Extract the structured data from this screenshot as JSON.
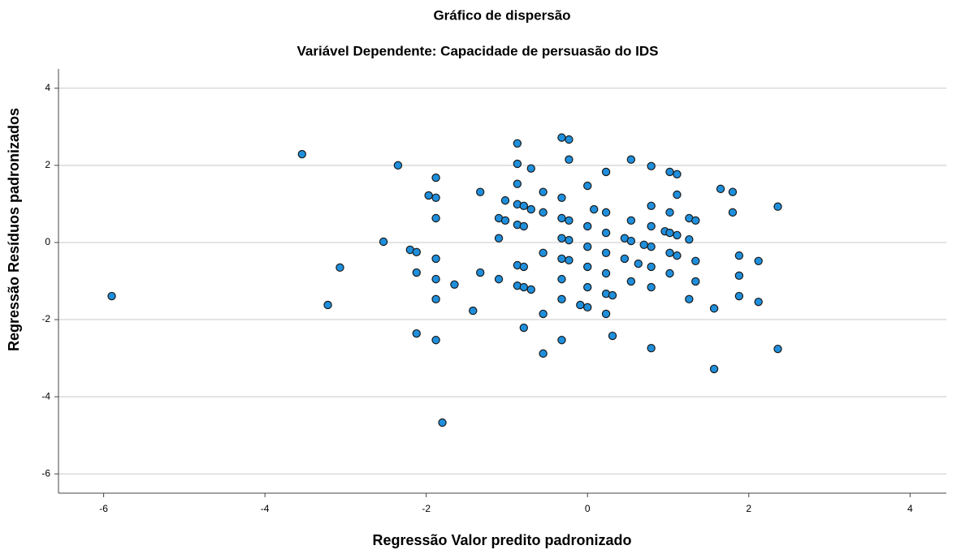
{
  "chart_data": {
    "type": "scatter",
    "title": "Gráfico de dispersão",
    "subtitle": "Variável Dependente: Capacidade de persuasão do IDS",
    "x_label": "Regressão Valor predito padronizado",
    "y_label": "Regressão Resíduos padronizados",
    "color": "#1f8fdc",
    "grid": true,
    "xlim": [
      -6.56,
      4.45
    ],
    "ylim": [
      -6.5,
      4.5
    ],
    "xticks": [
      -6,
      -4,
      -2,
      0,
      2,
      4
    ],
    "yticks": [
      -6,
      -4,
      -2,
      0,
      2,
      4
    ],
    "series": [
      {
        "x": [
          -5.9,
          -3.54,
          -3.07,
          -3.22,
          -2.35,
          -2.53,
          -2.2,
          -2.12,
          -2.12,
          -2.12,
          -1.97,
          -1.88,
          -1.88,
          -1.88,
          -1.88,
          -1.88,
          -1.88,
          -1.88,
          -1.8,
          -1.65,
          -1.42,
          -1.33,
          -1.33,
          -1.1,
          -1.1,
          -1.1,
          -1.02,
          -1.02,
          -0.87,
          -0.87,
          -0.87,
          -0.87,
          -0.87,
          -0.87,
          -0.87,
          -0.79,
          -0.79,
          -0.79,
          -0.79,
          -0.79,
          -0.7,
          -0.7,
          -0.7,
          -0.55,
          -0.55,
          -0.55,
          -0.55,
          -0.55,
          -0.32,
          -0.32,
          -0.32,
          -0.32,
          -0.32,
          -0.32,
          -0.32,
          -0.32,
          -0.23,
          -0.23,
          -0.23,
          -0.23,
          -0.23,
          -0.09,
          0,
          0,
          0,
          0,
          0,
          0,
          0.08,
          0.23,
          0.23,
          0.23,
          0.23,
          0.23,
          0.23,
          0.23,
          0.31,
          0.31,
          0.46,
          0.46,
          0.54,
          0.54,
          0.54,
          0.54,
          0.63,
          0.7,
          0.79,
          0.79,
          0.79,
          0.79,
          0.79,
          0.79,
          0.79,
          0.96,
          1.02,
          1.02,
          1.02,
          1.02,
          1.02,
          1.11,
          1.11,
          1.11,
          1.11,
          1.26,
          1.26,
          1.26,
          1.34,
          1.34,
          1.34,
          1.57,
          1.57,
          1.65,
          1.8,
          1.8,
          1.88,
          1.88,
          1.88,
          2.12,
          2.12,
          2.36,
          2.36
        ],
        "values": [
          -1.39,
          2.29,
          -0.65,
          -1.62,
          2.0,
          0.02,
          -0.19,
          -0.25,
          -0.78,
          -2.36,
          1.22,
          1.68,
          1.16,
          0.63,
          -0.42,
          -0.95,
          -1.47,
          -2.53,
          -4.67,
          -1.09,
          -1.77,
          1.31,
          -0.78,
          0.63,
          0.11,
          -0.95,
          1.09,
          0.57,
          2.57,
          2.04,
          1.52,
          0.99,
          0.46,
          -0.59,
          -1.12,
          0.95,
          0.42,
          -0.63,
          -1.16,
          -2.21,
          1.92,
          0.86,
          -1.22,
          1.31,
          0.78,
          -0.27,
          -1.85,
          -2.88,
          2.72,
          1.16,
          0.63,
          0.11,
          -0.42,
          -0.95,
          -1.47,
          -2.53,
          2.67,
          2.15,
          0.57,
          0.06,
          -0.46,
          -1.62,
          1.47,
          0.42,
          -0.11,
          -0.63,
          -1.16,
          -1.68,
          0.86,
          1.83,
          0.78,
          0.25,
          -0.27,
          -0.8,
          -1.33,
          -1.85,
          -1.37,
          -2.42,
          -0.42,
          0.11,
          2.15,
          0.57,
          0.04,
          -1.01,
          -0.55,
          -0.06,
          1.98,
          0.95,
          0.42,
          -0.11,
          -0.63,
          -1.16,
          -2.74,
          0.29,
          1.83,
          0.78,
          0.25,
          -0.27,
          -0.8,
          1.77,
          1.24,
          0.19,
          -0.34,
          0.63,
          0.08,
          -1.47,
          0.57,
          -0.48,
          -1.01,
          -1.71,
          -3.28,
          1.39,
          0.78,
          1.31,
          -0.34,
          -0.86,
          -1.39,
          -0.48,
          -1.54,
          0.93,
          -2.76
        ]
      }
    ]
  }
}
